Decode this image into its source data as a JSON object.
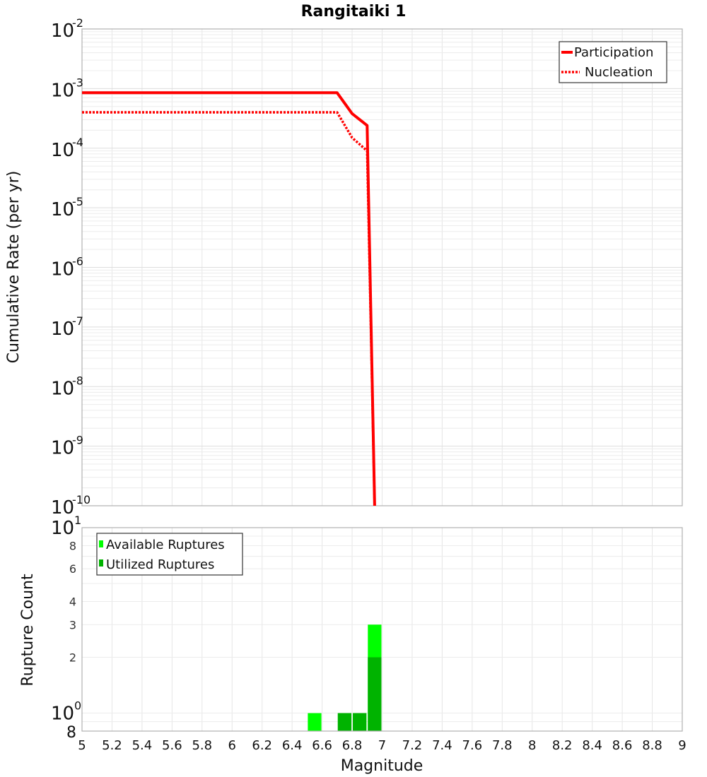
{
  "chart_data": [
    {
      "type": "line",
      "title": "Rangitaiki 1",
      "xlabel": "Magnitude",
      "ylabel": "Cumulative Rate (per yr)",
      "yscale": "log",
      "ylim": [
        1e-10,
        0.01
      ],
      "xlim": [
        5,
        9
      ],
      "grid": true,
      "legend_position": "top-right",
      "y_tick_labels": [
        {
          "base": "10",
          "exp": "-2",
          "value": 0.01
        },
        {
          "base": "10",
          "exp": "-3",
          "value": 0.001
        },
        {
          "base": "10",
          "exp": "-4",
          "value": 0.0001
        },
        {
          "base": "10",
          "exp": "-5",
          "value": 1e-05
        },
        {
          "base": "10",
          "exp": "-6",
          "value": 1e-06
        },
        {
          "base": "10",
          "exp": "-7",
          "value": 1e-07
        },
        {
          "base": "10",
          "exp": "-8",
          "value": 1e-08
        },
        {
          "base": "10",
          "exp": "-9",
          "value": 1e-09
        },
        {
          "base": "10",
          "exp": "-10",
          "value": 1e-10
        }
      ],
      "series": [
        {
          "name": "Participation",
          "style": "solid",
          "color": "#ff0000",
          "x": [
            5.0,
            6.7,
            6.8,
            6.9,
            6.95
          ],
          "y": [
            0.00085,
            0.00085,
            0.00038,
            0.00024,
            1e-10
          ]
        },
        {
          "name": "Nucleation",
          "style": "dotted",
          "color": "#ff0000",
          "x": [
            5.0,
            6.7,
            6.8,
            6.9,
            6.95
          ],
          "y": [
            0.0004,
            0.0004,
            0.00015,
            9e-05,
            1e-10
          ]
        }
      ]
    },
    {
      "type": "bar",
      "title": "",
      "xlabel": "Magnitude",
      "ylabel": "Rupture Count",
      "yscale": "log",
      "ylim": [
        0.8,
        10
      ],
      "xlim": [
        5,
        9
      ],
      "grid": true,
      "legend_position": "top-left",
      "x_tick_labels": [
        "5",
        "5.2",
        "5.4",
        "5.6",
        "5.8",
        "6",
        "6.2",
        "6.4",
        "6.6",
        "6.8",
        "7",
        "7.2",
        "7.4",
        "7.6",
        "7.8",
        "8",
        "8.2",
        "8.4",
        "8.6",
        "8.8",
        "9"
      ],
      "y_tick_labels": [
        {
          "label": "10",
          "exp": "1",
          "value": 10
        },
        {
          "label": "8",
          "value": 8
        },
        {
          "label": "6",
          "value": 6
        },
        {
          "label": "4",
          "value": 4
        },
        {
          "label": "3",
          "value": 3
        },
        {
          "label": "2",
          "value": 2
        },
        {
          "label": "10",
          "exp": "0",
          "value": 1
        },
        {
          "label": "8",
          "value": 0.8
        }
      ],
      "bin_width": 0.1,
      "categories": [
        6.55,
        6.75,
        6.85,
        6.95
      ],
      "series": [
        {
          "name": "Available Ruptures",
          "color": "#00ff00",
          "values": [
            1,
            1,
            1,
            3
          ]
        },
        {
          "name": "Utilized Ruptures",
          "color": "#00b300",
          "values": [
            0,
            1,
            1,
            2
          ]
        }
      ]
    }
  ],
  "legend_top": {
    "items": [
      {
        "label": "Participation"
      },
      {
        "label": "Nucleation"
      }
    ]
  },
  "legend_bottom": {
    "items": [
      {
        "label": "Available Ruptures"
      },
      {
        "label": "Utilized Ruptures"
      }
    ]
  }
}
